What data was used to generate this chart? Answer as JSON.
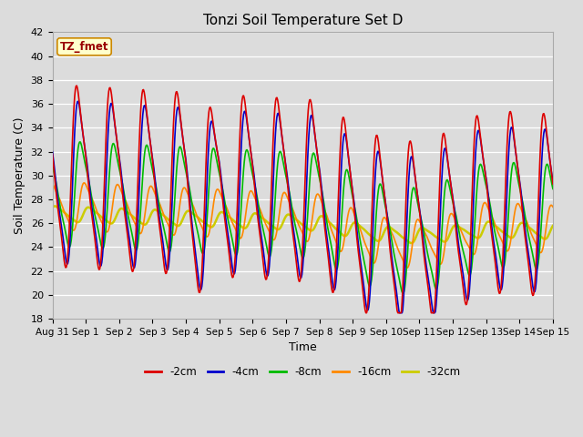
{
  "title": "Tonzi Soil Temperature Set D",
  "xlabel": "Time",
  "ylabel": "Soil Temperature (C)",
  "ylim": [
    18,
    42
  ],
  "yticks": [
    18,
    20,
    22,
    24,
    26,
    28,
    30,
    32,
    34,
    36,
    38,
    40,
    42
  ],
  "background_color": "#dcdcdc",
  "plot_bg_color": "#dcdcdc",
  "legend_label": "TZ_fmet",
  "legend_box_facecolor": "#ffffcc",
  "legend_box_edgecolor": "#cc8800",
  "series": {
    "-2cm": {
      "color": "#dd0000",
      "lw": 1.2
    },
    "-4cm": {
      "color": "#0000cc",
      "lw": 1.2
    },
    "-8cm": {
      "color": "#00bb00",
      "lw": 1.2
    },
    "-16cm": {
      "color": "#ff8800",
      "lw": 1.2
    },
    "-32cm": {
      "color": "#cccc00",
      "lw": 1.8
    }
  },
  "xtick_labels": [
    "Aug 31",
    "Sep 1",
    "Sep 2",
    "Sep 3",
    "Sep 4",
    "Sep 5",
    "Sep 6",
    "Sep 7",
    "Sep 8",
    "Sep 9",
    "Sep 10",
    "Sep 11",
    "Sep 12",
    "Sep 13",
    "Sep 14",
    "Sep 15"
  ],
  "n_days": 15,
  "samples_per_day": 48
}
